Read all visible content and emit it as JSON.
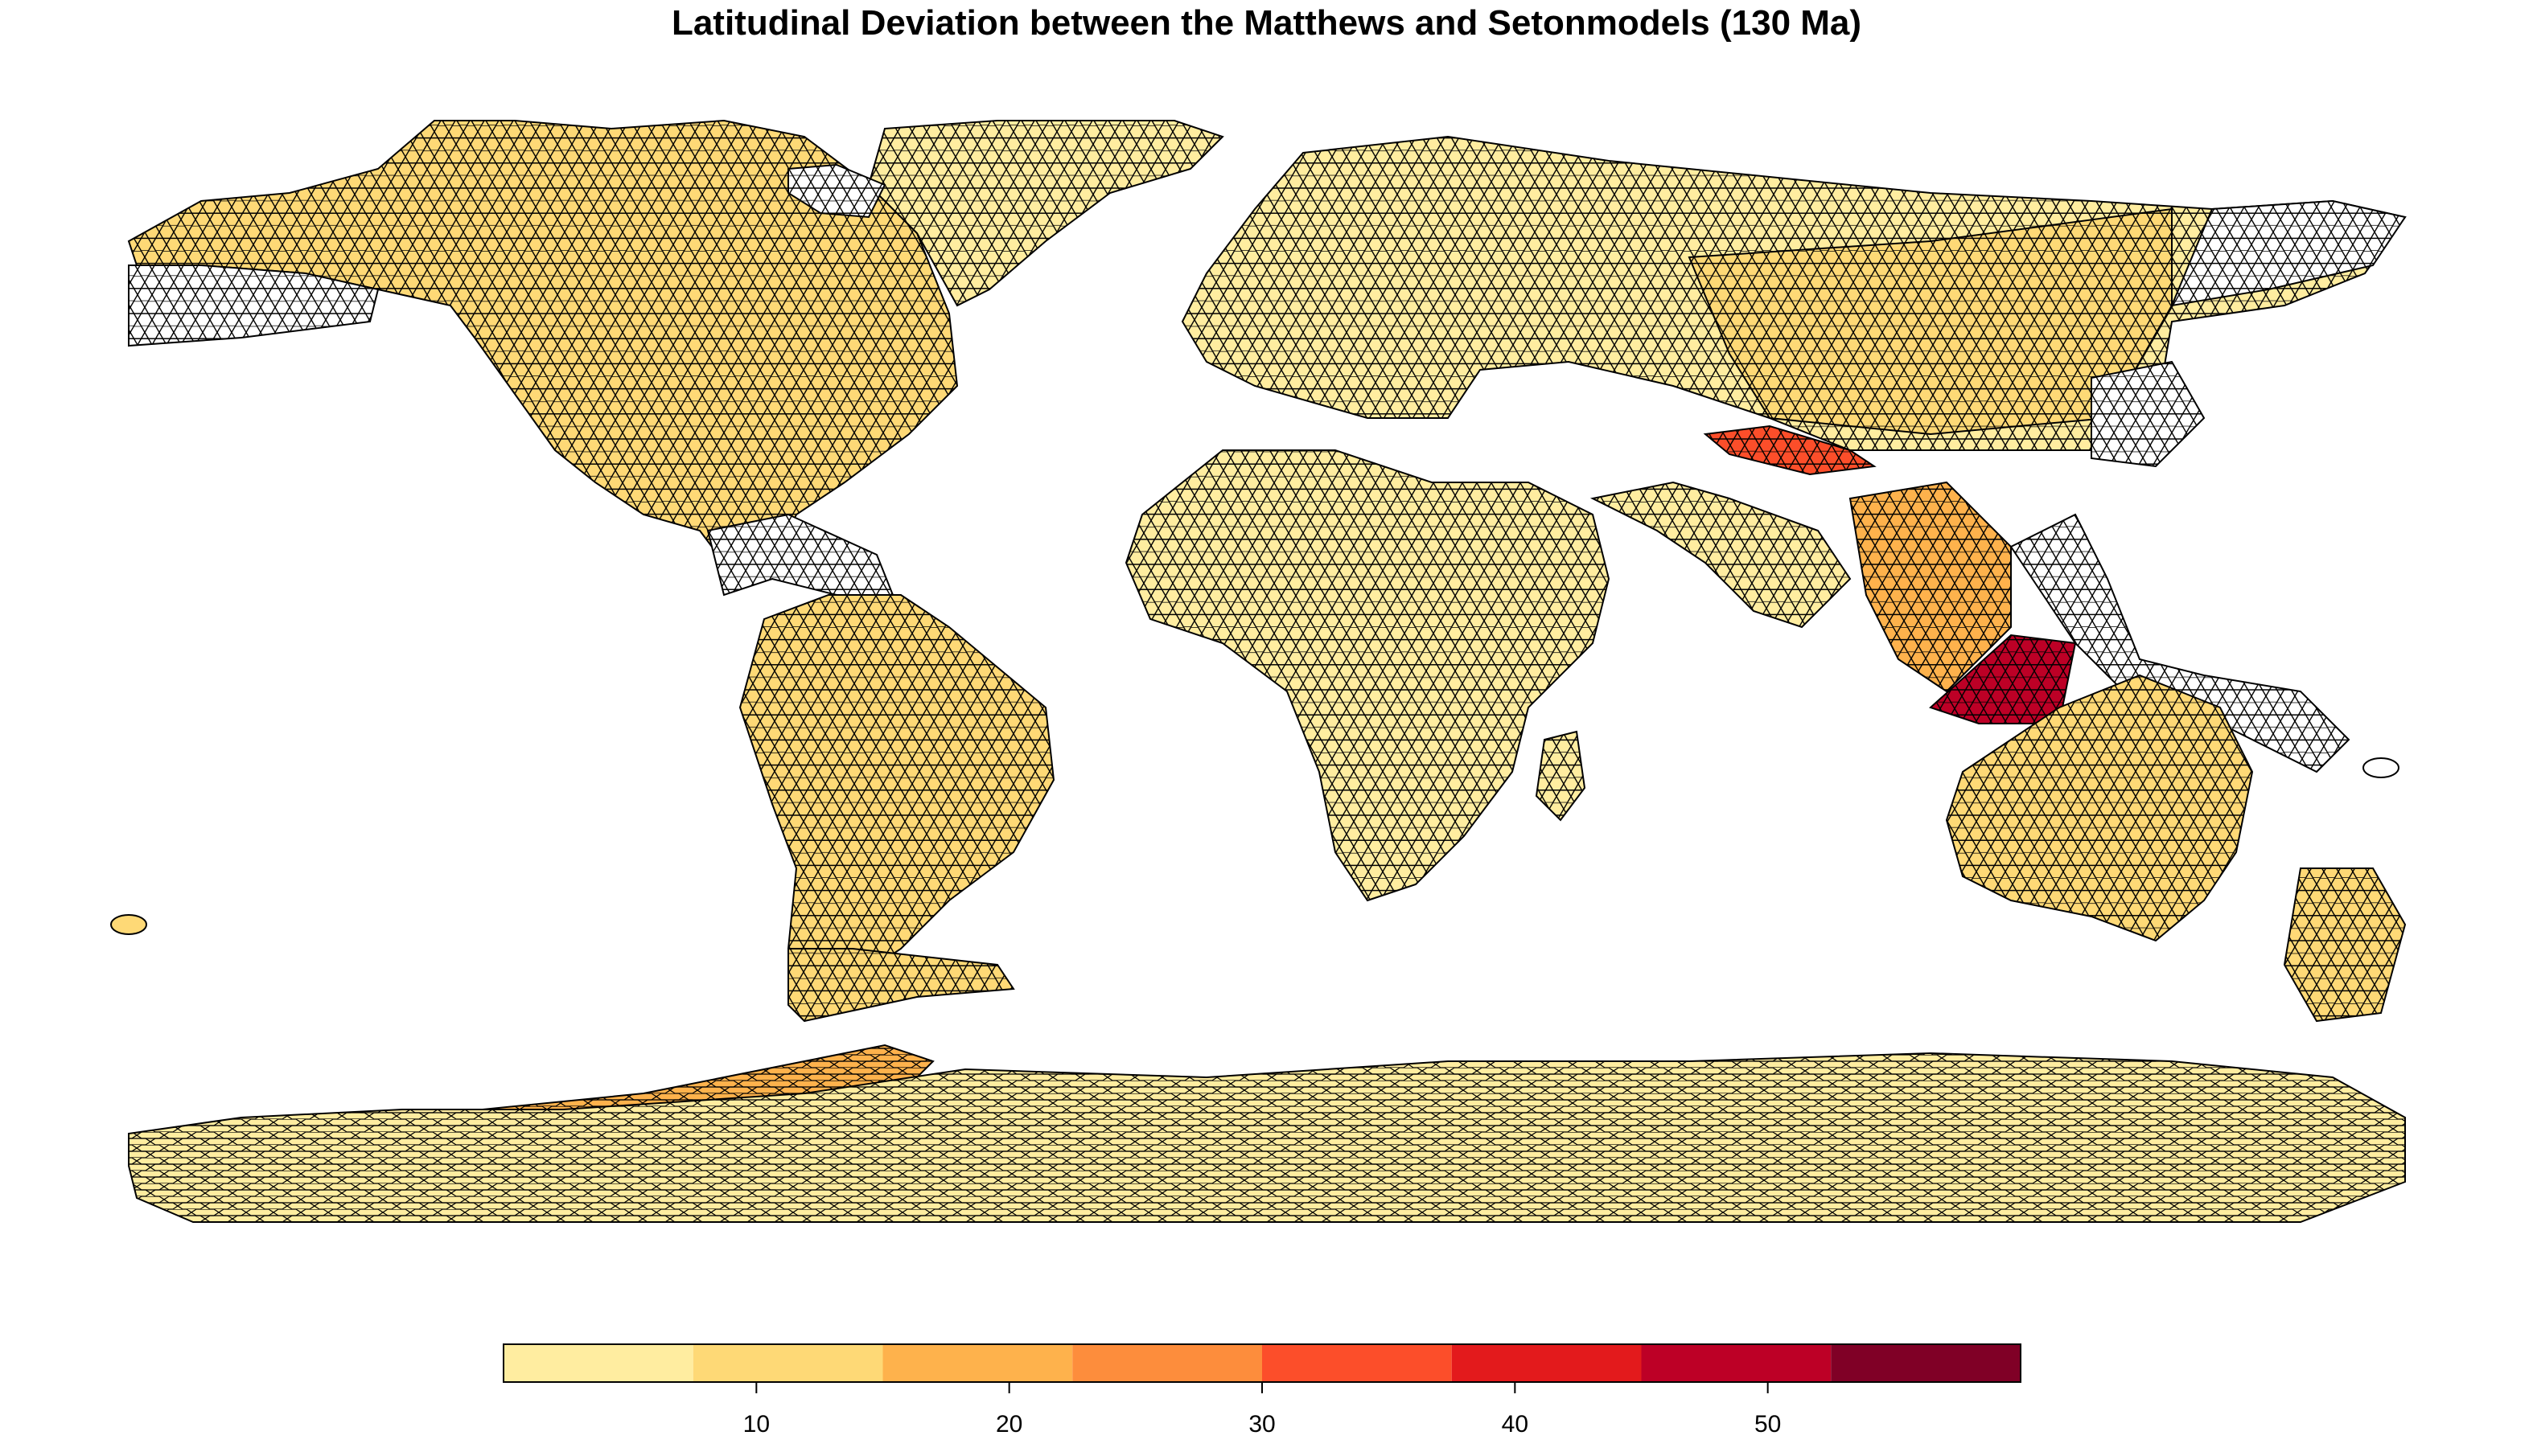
{
  "title": "Latitudinal Deviation between the Matthews and Setonmodels (130 Ma)",
  "map": {
    "projection": "equirectangular",
    "grid": "hexagonal equal-area cells",
    "cell_outline": "#000000",
    "no_data_fill": "#ffffff",
    "value_ranges_by_region": [
      {
        "region": "North America",
        "typical": "7.5-15"
      },
      {
        "region": "South America",
        "typical": "7.5-15"
      },
      {
        "region": "Africa",
        "typical": "0-7.5"
      },
      {
        "region": "Europe",
        "typical": "0-7.5"
      },
      {
        "region": "Central Asia",
        "typical": "7.5-15"
      },
      {
        "region": "Himalaya / Tibet belt",
        "typical": "30-45"
      },
      {
        "region": "Southeast Asia (Sundaland)",
        "typical": "45-60"
      },
      {
        "region": "Australia",
        "typical": "7.5-15"
      },
      {
        "region": "Antarctica (West)",
        "typical": "15-22.5"
      },
      {
        "region": "Antarctica (East)",
        "typical": "0-7.5"
      },
      {
        "region": "Western North America margin / Caribbean / Philippines / New Guinea",
        "typical": "no data"
      }
    ]
  },
  "legend": {
    "breaks": [
      0,
      7.5,
      15,
      22.5,
      30,
      37.5,
      45,
      52.5,
      60
    ],
    "colors": [
      "#ffeda0",
      "#fed976",
      "#feb24c",
      "#fd8d3c",
      "#fc4e2a",
      "#e31a1c",
      "#bd0026",
      "#800026"
    ],
    "ticks": [
      10,
      20,
      30,
      40,
      50
    ],
    "tick_labels": [
      "10",
      "20",
      "30",
      "40",
      "50"
    ]
  }
}
